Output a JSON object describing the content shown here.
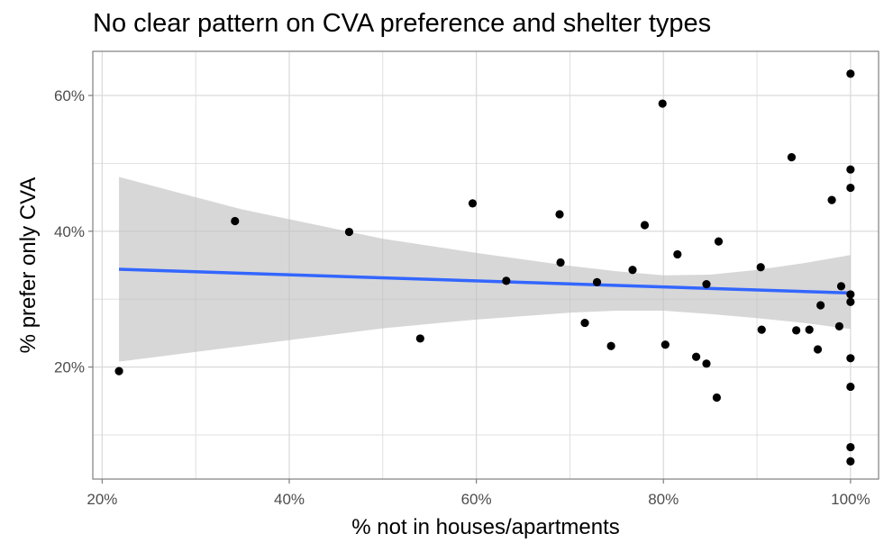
{
  "chart_data": {
    "type": "scatter",
    "title": "No clear pattern on CVA preference and shelter types",
    "xlabel": "% not in houses/apartments",
    "ylabel": "% prefer only CVA",
    "xlim": [
      0.19,
      1.03
    ],
    "ylim": [
      0.035,
      0.665
    ],
    "x_ticks": [
      0.2,
      0.4,
      0.6,
      0.8,
      1.0
    ],
    "x_tick_labels": [
      "20%",
      "40%",
      "60%",
      "80%",
      "100%"
    ],
    "y_ticks": [
      0.2,
      0.4,
      0.6
    ],
    "y_tick_labels": [
      "20%",
      "40%",
      "60%"
    ],
    "grid": true,
    "points": [
      {
        "x": 0.218,
        "y": 0.194
      },
      {
        "x": 0.342,
        "y": 0.415
      },
      {
        "x": 0.464,
        "y": 0.399
      },
      {
        "x": 0.54,
        "y": 0.242
      },
      {
        "x": 0.596,
        "y": 0.441
      },
      {
        "x": 0.632,
        "y": 0.327
      },
      {
        "x": 0.689,
        "y": 0.425
      },
      {
        "x": 0.69,
        "y": 0.354
      },
      {
        "x": 0.716,
        "y": 0.265
      },
      {
        "x": 0.729,
        "y": 0.325
      },
      {
        "x": 0.744,
        "y": 0.231
      },
      {
        "x": 0.767,
        "y": 0.343
      },
      {
        "x": 0.78,
        "y": 0.409
      },
      {
        "x": 0.799,
        "y": 0.588
      },
      {
        "x": 0.802,
        "y": 0.233
      },
      {
        "x": 0.815,
        "y": 0.366
      },
      {
        "x": 0.835,
        "y": 0.215
      },
      {
        "x": 0.846,
        "y": 0.322
      },
      {
        "x": 0.846,
        "y": 0.205
      },
      {
        "x": 0.857,
        "y": 0.155
      },
      {
        "x": 0.859,
        "y": 0.385
      },
      {
        "x": 0.904,
        "y": 0.347
      },
      {
        "x": 0.905,
        "y": 0.255
      },
      {
        "x": 0.937,
        "y": 0.509
      },
      {
        "x": 0.942,
        "y": 0.254
      },
      {
        "x": 0.956,
        "y": 0.255
      },
      {
        "x": 0.965,
        "y": 0.226
      },
      {
        "x": 0.968,
        "y": 0.291
      },
      {
        "x": 0.98,
        "y": 0.446
      },
      {
        "x": 0.988,
        "y": 0.26
      },
      {
        "x": 0.99,
        "y": 0.319
      },
      {
        "x": 1.0,
        "y": 0.632
      },
      {
        "x": 1.0,
        "y": 0.491
      },
      {
        "x": 1.0,
        "y": 0.464
      },
      {
        "x": 1.0,
        "y": 0.307
      },
      {
        "x": 1.0,
        "y": 0.296
      },
      {
        "x": 1.0,
        "y": 0.213
      },
      {
        "x": 1.0,
        "y": 0.171
      },
      {
        "x": 1.0,
        "y": 0.082
      },
      {
        "x": 1.0,
        "y": 0.061
      }
    ],
    "trend_line": {
      "x": [
        0.218,
        1.0
      ],
      "y": [
        0.344,
        0.309
      ]
    },
    "confidence_band": {
      "x": [
        0.218,
        0.35,
        0.5,
        0.6,
        0.7,
        0.75,
        0.8,
        0.85,
        0.9,
        0.95,
        1.0
      ],
      "upper": [
        0.48,
        0.432,
        0.389,
        0.368,
        0.349,
        0.341,
        0.335,
        0.336,
        0.343,
        0.353,
        0.365
      ],
      "lower": [
        0.208,
        0.231,
        0.257,
        0.27,
        0.28,
        0.283,
        0.283,
        0.278,
        0.272,
        0.265,
        0.256
      ]
    },
    "colors": {
      "points": "#000000",
      "trend_line": "#3366FF",
      "band": "#BEBEBE",
      "grid": "#D9D9D9",
      "panel_border": "#7F7F7F"
    }
  }
}
